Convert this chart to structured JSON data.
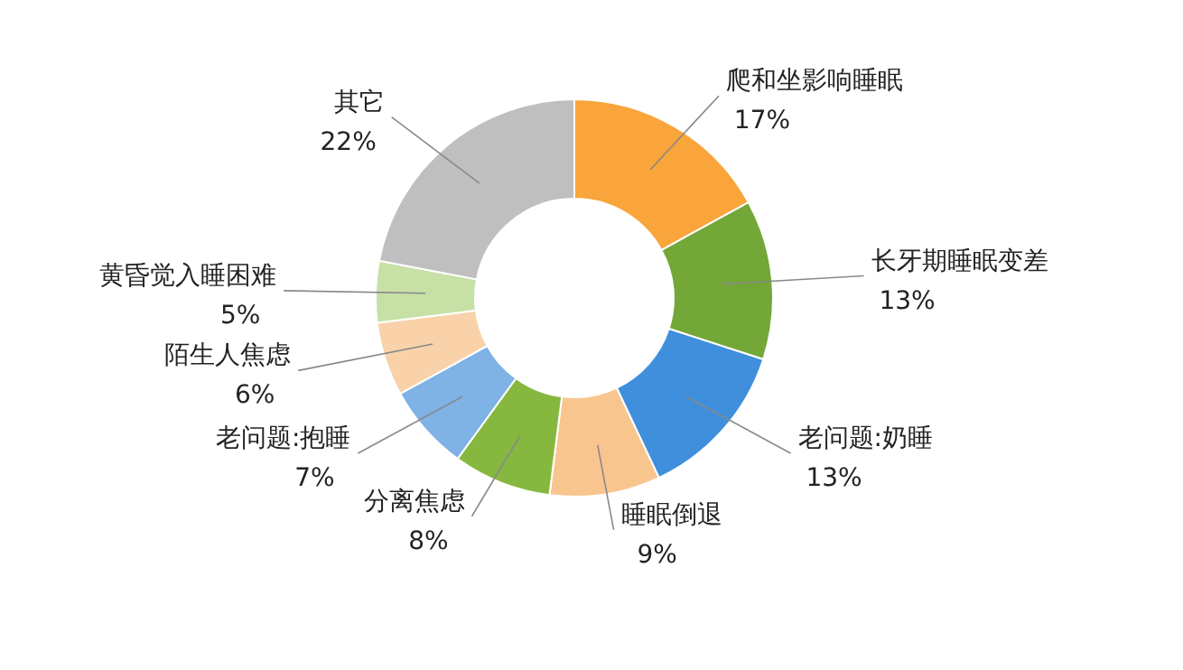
{
  "chart_data": {
    "type": "donut",
    "categories": [
      "爬和坐影响睡眠",
      "长牙期睡眠变差",
      "老问题:奶睡",
      "睡眠倒退",
      "分离焦虑",
      "老问题:抱睡",
      "陌生人焦虑",
      "黄昏觉入睡困难",
      "其它"
    ],
    "values": [
      17,
      13,
      13,
      9,
      8,
      7,
      6,
      5,
      22
    ],
    "colors": [
      "#f9a53b",
      "#73a737",
      "#3f8fdc",
      "#f9c58f",
      "#86b83f",
      "#7fb2e5",
      "#f9d2aa",
      "#c6e0a6",
      "#bfbfbf"
    ],
    "value_labels": [
      "17%",
      "13%",
      "13%",
      "9%",
      "8%",
      "7%",
      "6%",
      "5%",
      "22%"
    ]
  }
}
